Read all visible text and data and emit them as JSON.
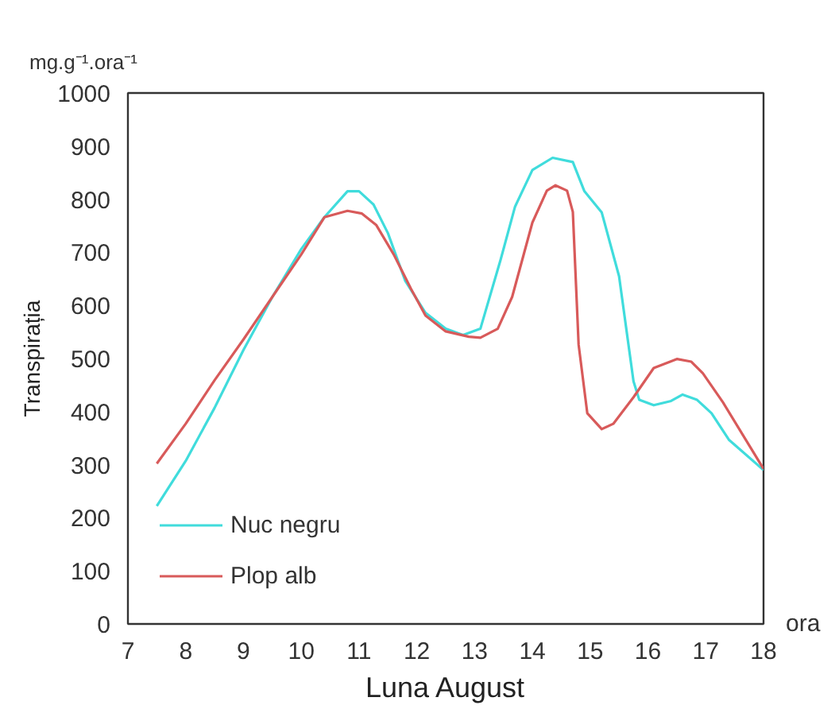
{
  "chart_data": {
    "type": "line",
    "xlabel": "Luna August",
    "ylabel": "Transpirația",
    "annotations": [
      "mg.g⁻¹.ora⁻¹",
      "ora"
    ],
    "xlim": [
      7,
      18
    ],
    "ylim": [
      0,
      1000
    ],
    "xticks": [
      7,
      8,
      9,
      10,
      11,
      12,
      13,
      14,
      15,
      16,
      17,
      18
    ],
    "yticks": [
      0,
      100,
      200,
      300,
      400,
      500,
      600,
      700,
      800,
      900,
      1000
    ],
    "grid": false,
    "legend": "bottom left",
    "marker": "none",
    "line_style": "solid",
    "series": [
      {
        "name": "Nuc negru",
        "color": "#40dcdc",
        "x": [
          7.5,
          8.0,
          8.5,
          9.0,
          9.5,
          10.0,
          10.4,
          10.8,
          11.0,
          11.25,
          11.5,
          11.8,
          12.15,
          12.5,
          12.8,
          13.1,
          13.45,
          13.7,
          14.0,
          14.35,
          14.7,
          14.9,
          15.2,
          15.5,
          15.75,
          15.85,
          16.1,
          16.4,
          16.6,
          16.85,
          17.1,
          17.4,
          18.0
        ],
        "values": [
          222,
          307,
          407,
          516,
          616,
          706,
          766,
          815,
          815,
          790,
          736,
          646,
          586,
          556,
          544,
          556,
          686,
          786,
          855,
          878,
          870,
          815,
          775,
          655,
          457,
          422,
          412,
          420,
          432,
          422,
          397,
          347,
          290
        ]
      },
      {
        "name": "Plop alb",
        "color": "#d85a5a",
        "x": [
          7.5,
          8.0,
          8.5,
          9.0,
          9.5,
          10.0,
          10.4,
          10.8,
          11.05,
          11.3,
          11.6,
          11.9,
          12.15,
          12.5,
          12.9,
          13.1,
          13.4,
          13.65,
          14.0,
          14.25,
          14.4,
          14.6,
          14.7,
          14.8,
          14.95,
          15.2,
          15.4,
          15.75,
          16.1,
          16.5,
          16.75,
          16.95,
          17.3,
          18.0
        ],
        "values": [
          302,
          377,
          459,
          536,
          616,
          696,
          766,
          778,
          773,
          751,
          696,
          631,
          581,
          551,
          541,
          539,
          556,
          616,
          756,
          816,
          826,
          816,
          776,
          526,
          397,
          367,
          377,
          427,
          482,
          499,
          494,
          472,
          417,
          292
        ]
      }
    ]
  }
}
